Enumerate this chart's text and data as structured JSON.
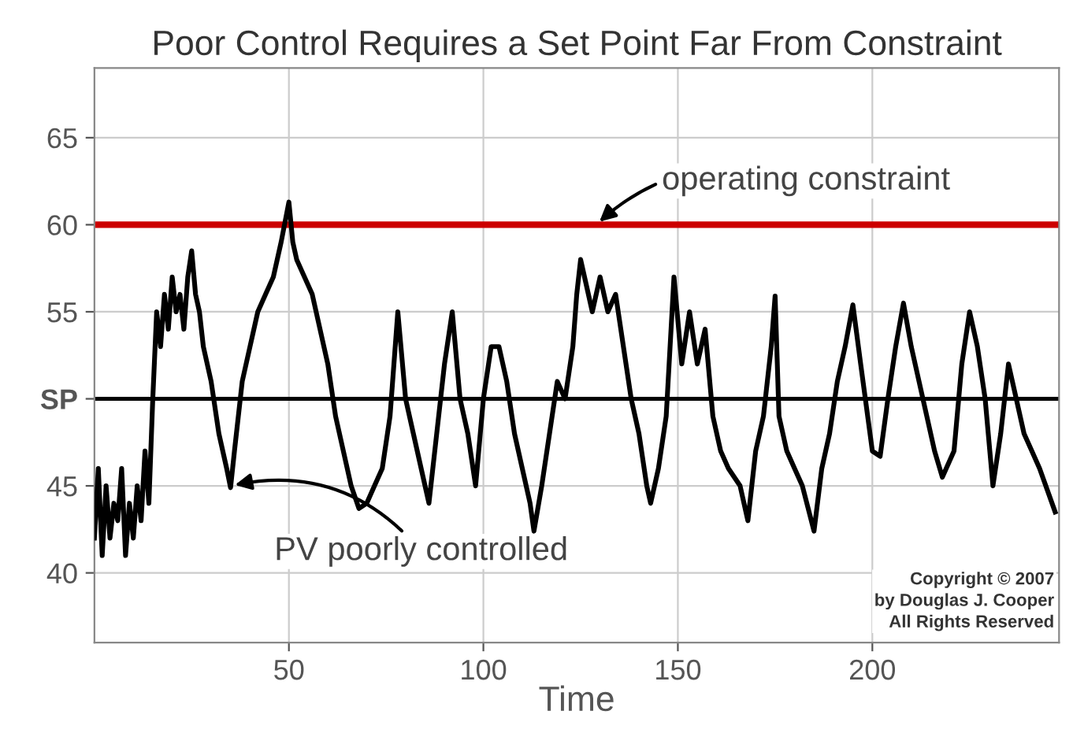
{
  "chart_data": {
    "type": "line",
    "title": "Poor Control Requires a Set Point Far From Constraint",
    "xlabel": "Time",
    "series": [
      {
        "color": "#000000",
        "x": [
          0,
          1,
          2,
          3,
          4,
          5,
          6,
          7,
          8,
          9,
          10,
          11,
          12,
          13,
          14,
          15,
          16,
          17,
          18,
          19,
          20,
          21,
          22,
          23,
          24,
          25,
          26,
          27,
          28,
          30,
          32,
          34,
          35,
          36,
          38,
          40,
          42,
          44,
          46,
          48,
          50,
          51,
          52,
          54,
          56,
          58,
          60,
          62,
          64,
          66,
          68,
          70,
          72,
          74,
          76,
          78,
          80,
          82,
          84,
          86,
          88,
          90,
          92,
          94,
          96,
          98,
          100,
          102,
          104,
          106,
          108,
          110,
          112,
          113,
          115,
          117,
          119,
          121,
          123,
          124,
          125,
          126,
          128,
          130,
          132,
          134,
          136,
          138,
          140,
          142,
          143,
          145,
          147,
          149,
          151,
          153,
          155,
          157,
          159,
          161,
          163,
          166,
          168,
          170,
          172,
          174,
          175,
          176,
          178,
          180,
          182,
          185,
          187,
          189,
          191,
          193,
          195,
          197,
          200,
          202,
          204,
          206,
          208,
          210,
          212,
          214,
          216,
          218,
          221,
          223,
          225,
          227,
          229,
          231,
          233,
          235,
          237,
          239,
          241,
          243,
          247
        ],
        "values": [
          42,
          46,
          41,
          45,
          42,
          44,
          43,
          46,
          41,
          44,
          42,
          45,
          43,
          47,
          44,
          50,
          55,
          53,
          56,
          54,
          57,
          55,
          56,
          54,
          57,
          58.5,
          56,
          55,
          53,
          51,
          48,
          46,
          44.9,
          47,
          51,
          53,
          55,
          56,
          57,
          59,
          61.3,
          59,
          58,
          57,
          56,
          54,
          52,
          49,
          47,
          45,
          43.7,
          44,
          45,
          46,
          49,
          55,
          50,
          48,
          46,
          44,
          48,
          52,
          55,
          50,
          48,
          45,
          50,
          53,
          53,
          51,
          48,
          46,
          44,
          42.4,
          45,
          48,
          51,
          50,
          53,
          56,
          58,
          57,
          55,
          57,
          55,
          56,
          53,
          50,
          48,
          45,
          44,
          46,
          49,
          57,
          52,
          55,
          52,
          54,
          49,
          47,
          46,
          45,
          43,
          47,
          49,
          53,
          55.9,
          49,
          47,
          46,
          45,
          42.4,
          46,
          48,
          51,
          53,
          55.4,
          52,
          47,
          46.7,
          50,
          53,
          55.5,
          53,
          51,
          49,
          47,
          45.5,
          47,
          52,
          55,
          53,
          50,
          45,
          48,
          52,
          50,
          48,
          47,
          46,
          43.5
        ]
      }
    ],
    "xlim": [
      0,
      248
    ],
    "ylim": [
      36,
      69
    ],
    "xticks": [
      50,
      100,
      150,
      200
    ],
    "yticks": [
      40,
      45,
      {
        "value": 50,
        "label": "SP"
      },
      55,
      60,
      65
    ],
    "grid": true,
    "legend": false,
    "marker": "none",
    "line_style": "solid",
    "ref_lines": [
      {
        "axis": "y",
        "value": 60,
        "label": null,
        "color": "#cc0000"
      },
      {
        "axis": "y",
        "value": 50,
        "label": null,
        "color": "#000000"
      }
    ],
    "annotations": [
      {
        "text": "operating constraint",
        "x": 129,
        "y": 60
      },
      {
        "text": "PV poorly controlled",
        "x": 35,
        "y": 45
      },
      "Copyright © 2007\nby Douglas J. Cooper\nAll Rights Reserved"
    ]
  }
}
